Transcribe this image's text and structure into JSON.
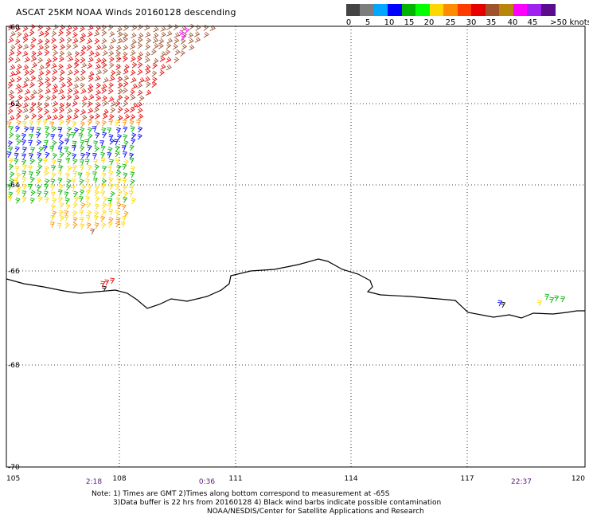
{
  "title": "ASCAT 25KM NOAA Winds 20160128 descending",
  "legend": {
    "colors": [
      "#444444",
      "#7d7d7d",
      "#00a6ff",
      "#0000ff",
      "#00b400",
      "#00ff00",
      "#ffd700",
      "#ff8c00",
      "#ff3c00",
      "#e60000",
      "#a0522d",
      "#b8860b",
      "#ff00ff",
      "#a020f0",
      "#5b0c8a"
    ],
    "labels": [
      "0",
      "5",
      "10",
      "15",
      "20",
      "25",
      "30",
      "35",
      "40",
      "45",
      ">50 knots"
    ]
  },
  "axes": {
    "lon_labels": [
      "105",
      "108",
      "111",
      "114",
      "117",
      "120"
    ],
    "lat_labels": [
      "-60",
      "-62",
      "-64",
      "-66",
      "-68",
      "-70"
    ]
  },
  "times": [
    "2:18",
    "0:36",
    "22:37"
  ],
  "notes": {
    "line1": "Note: 1) Times are GMT 2)Times along bottom correspond to measurement at -65S",
    "line2": "3)Data buffer is 22 hrs from 20160128 4) Black wind barbs indicate possible contamination",
    "line3": "NOAA/NESDIS/Center for Satellite Applications and Research"
  }
}
